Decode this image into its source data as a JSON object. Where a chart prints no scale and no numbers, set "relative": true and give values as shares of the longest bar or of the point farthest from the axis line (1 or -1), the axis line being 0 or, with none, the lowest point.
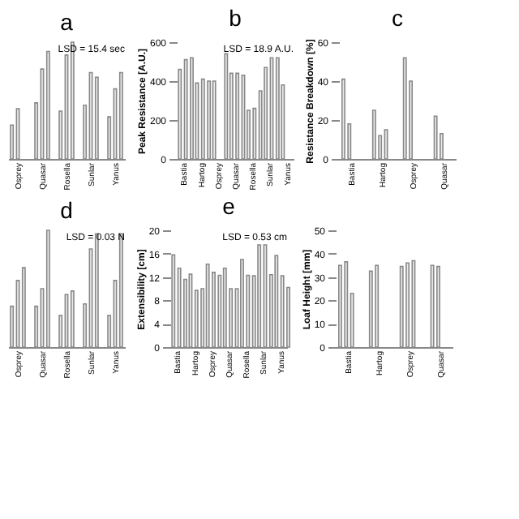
{
  "chart_data": [
    {
      "type": "bar",
      "title": "a",
      "relative": true,
      "categories": [
        "Osprey",
        "Quasar",
        "Rosella",
        "Sunlar",
        "Yanus"
      ],
      "series": [
        {
          "color": "#888888",
          "values": [
            0.29,
            0.48,
            0.41,
            0.46,
            0.36
          ]
        },
        {
          "color": "#888888",
          "values": [
            0.43,
            0.77,
            0.89,
            0.74,
            0.6
          ]
        },
        {
          "color": "#888888",
          "values": [
            null,
            0.92,
            1.0,
            0.7,
            0.74
          ]
        }
      ],
      "annotations": [
        "LSD = 15.4 sec"
      ],
      "grid": false
    },
    {
      "type": "bar",
      "title": "b",
      "categories": [
        "Bastia",
        "Hartog",
        "Osprey",
        "Quasar",
        "Rosella",
        "Sunlar",
        "Yanus"
      ],
      "series": [
        {
          "color": "#888888",
          "values": [
            460,
            390,
            400,
            440,
            250,
            470,
            380
          ]
        },
        {
          "color": "#888888",
          "values": [
            510,
            410,
            null,
            440,
            260,
            520,
            null
          ]
        },
        {
          "color": "#888888",
          "values": [
            520,
            400,
            540,
            430,
            350,
            520,
            null
          ]
        }
      ],
      "ylim": [
        0,
        600
      ],
      "yticks": [
        0,
        200,
        400,
        600
      ],
      "ylabel": "Peak Resistance [A.U.]",
      "annotations": [
        "LSD = 18.9 A.U."
      ],
      "grid": false
    },
    {
      "type": "bar",
      "title": "c",
      "categories": [
        "Bastia",
        "Hartog",
        "Osprey",
        "Quasar"
      ],
      "series": [
        {
          "color": "#888888",
          "values": [
            41,
            25,
            52,
            22
          ]
        },
        {
          "color": "#888888",
          "values": [
            18,
            12,
            40,
            13
          ]
        },
        {
          "color": "#888888",
          "values": [
            null,
            15,
            null,
            null
          ]
        }
      ],
      "ylim": [
        0,
        60
      ],
      "yticks": [
        0,
        20,
        40,
        60
      ],
      "ylabel": "Resistance Breakdown [%]",
      "grid": false
    },
    {
      "type": "bar",
      "title": "d",
      "relative": true,
      "categories": [
        "Osprey",
        "Quasar",
        "Rosella",
        "Sunlar",
        "Yanus"
      ],
      "series": [
        {
          "color": "#888888",
          "values": [
            0.35,
            0.35,
            0.27,
            0.37,
            0.27
          ]
        },
        {
          "color": "#888888",
          "values": [
            0.57,
            0.5,
            0.45,
            0.84,
            0.57
          ]
        },
        {
          "color": "#888888",
          "values": [
            0.68,
            1.0,
            0.48,
            0.97,
            0.97
          ]
        }
      ],
      "annotations": [
        "LSD = 0.03 N"
      ],
      "grid": false
    },
    {
      "type": "bar",
      "title": "e",
      "categories": [
        "Bastia",
        "Hartog",
        "Osprey",
        "Quasar",
        "Rosella",
        "Sunlar",
        "Yanus"
      ],
      "series": [
        {
          "color": "#888888",
          "values": [
            15.8,
            12.5,
            14.2,
            13.5,
            15,
            17.5,
            15.7
          ]
        },
        {
          "color": "#888888",
          "values": [
            13.5,
            9.7,
            12.8,
            10,
            12.3,
            17.5,
            12.2
          ]
        },
        {
          "color": "#888888",
          "values": [
            11.6,
            10,
            12.3,
            10,
            12.2,
            12.4,
            10.2
          ]
        }
      ],
      "ylim": [
        0,
        20
      ],
      "yticks": [
        0,
        4,
        8,
        12,
        16,
        20
      ],
      "ylabel": "Extensibility [cm]",
      "annotations": [
        "LSD = 0.53 cm"
      ],
      "grid": false
    },
    {
      "type": "bar",
      "categories": [
        "Bastia",
        "Hartog",
        "Osprey",
        "Quasar"
      ],
      "series": [
        {
          "color": "#888888",
          "values": [
            35,
            32.5,
            34.5,
            35
          ]
        },
        {
          "color": "#888888",
          "values": [
            36.5,
            35,
            36,
            34.5
          ]
        },
        {
          "color": "#888888",
          "values": [
            23,
            null,
            37,
            null
          ]
        }
      ],
      "ylim": [
        0,
        50
      ],
      "yticks": [
        0,
        10,
        20,
        30,
        40,
        50
      ],
      "ylabel": "Loaf Height [mm]",
      "grid": false
    }
  ]
}
